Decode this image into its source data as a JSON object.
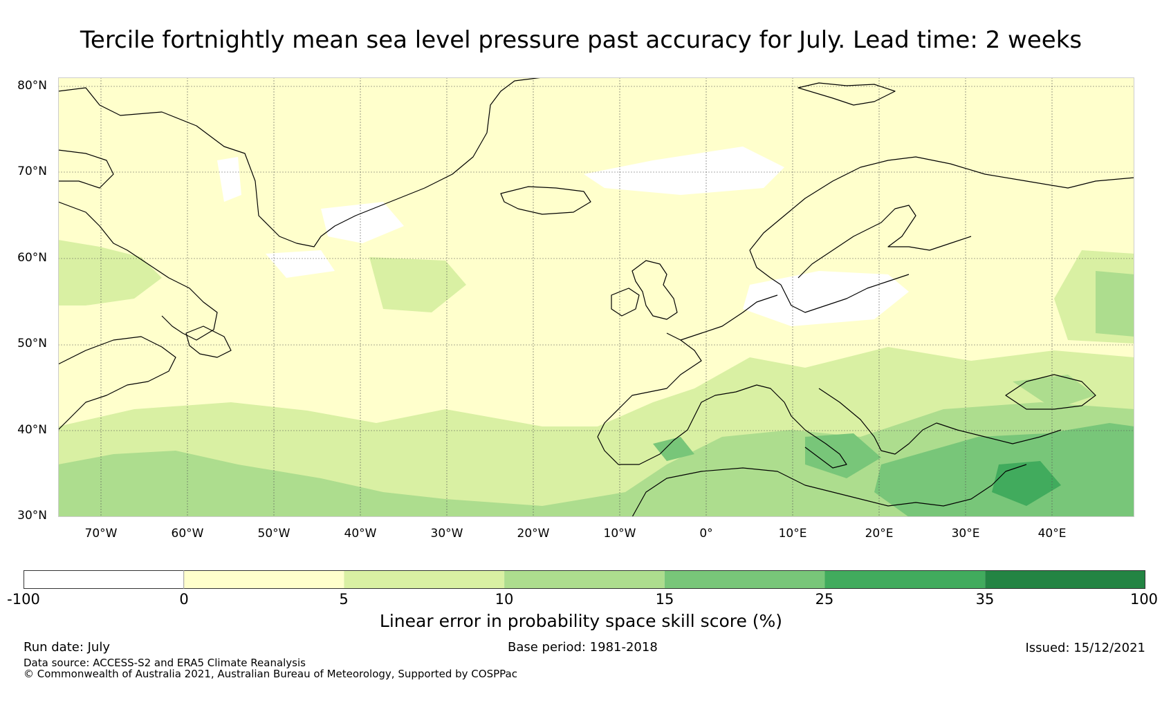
{
  "title": "Tercile fortnightly mean sea level pressure past accuracy for July. Lead time: 2 weeks",
  "lat_labels": [
    "80°N",
    "70°N",
    "60°N",
    "50°N",
    "40°N",
    "30°N"
  ],
  "lon_labels": [
    "70°W",
    "60°W",
    "50°W",
    "40°W",
    "30°W",
    "20°W",
    "10°W",
    "0°",
    "10°E",
    "20°E",
    "30°E",
    "40°E"
  ],
  "colorbar": {
    "title": "Linear error in probability space skill score (%)",
    "ticks": [
      "-100",
      "0",
      "5",
      "10",
      "15",
      "25",
      "35",
      "100"
    ],
    "colors": [
      "#ffffff",
      "#ffffcc",
      "#d9f0a3",
      "#addd8e",
      "#78c679",
      "#41ab5d",
      "#238443"
    ]
  },
  "map_colors": {
    "white": "#ffffff",
    "c1": "#ffffcc",
    "c2": "#d9f0a3",
    "c3": "#addd8e",
    "c4": "#78c679",
    "c5": "#41ab5d",
    "coast": "#000000",
    "grid": "#555555"
  },
  "footer": {
    "run_date": "Run date: July",
    "base_period": "Base period: 1981-2018",
    "issued": "Issued: 15/12/2021",
    "source": "Data source: ACCESS-S2 and ERA5 Climate Reanalysis",
    "copyright": "© Commonwealth of Australia 2021, Australian Bureau of Meteorology, Supported by COSPPac"
  }
}
